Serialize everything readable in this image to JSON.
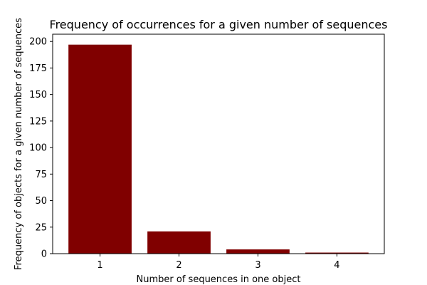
{
  "chart_data": {
    "type": "bar",
    "title": "Frequency of occurrences for a given number of sequences",
    "xlabel": "Number of sequences in one object",
    "ylabel": "Frequency of objects for a given number of sequences",
    "categories": [
      "1",
      "2",
      "3",
      "4"
    ],
    "values": [
      197,
      21,
      4,
      1
    ],
    "ylim": [
      0,
      206.85
    ],
    "yticks": [
      0,
      25,
      50,
      75,
      100,
      125,
      150,
      175,
      200
    ],
    "bar_color": "#800000",
    "grid": false,
    "legend": "none"
  }
}
